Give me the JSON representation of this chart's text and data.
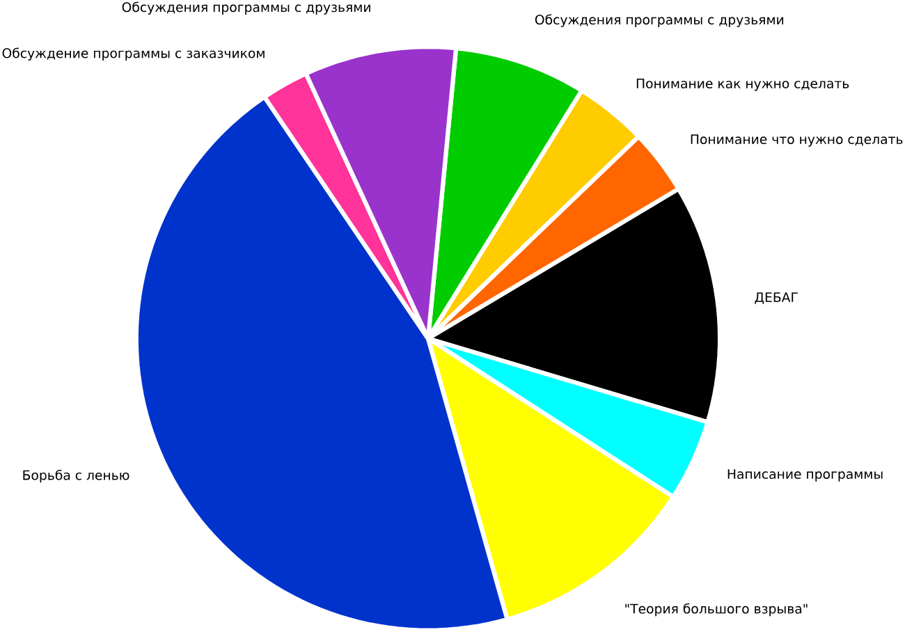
{
  "chart_data": {
    "type": "pie",
    "categories": [
      "Обсуждения программы с друзьями",
      "Понимание как нужно сделать",
      "Понимание что нужно сделать",
      "ДЕБАГ",
      "Написание программы",
      "\"Теория большого взрыва\"",
      "Борьба с ленью",
      "Обсуждение программы с заказчиком",
      "Обсуждения программы с друзьями"
    ],
    "values": [
      7.3,
      4.0,
      3.6,
      13.2,
      4.5,
      11.5,
      44.9,
      2.6,
      8.4
    ],
    "colors": [
      "#00cc00",
      "#ffcc00",
      "#ff6600",
      "#000000",
      "#00ffff",
      "#ffff00",
      "#0033cc",
      "#ff3399",
      "#9933cc"
    ]
  }
}
